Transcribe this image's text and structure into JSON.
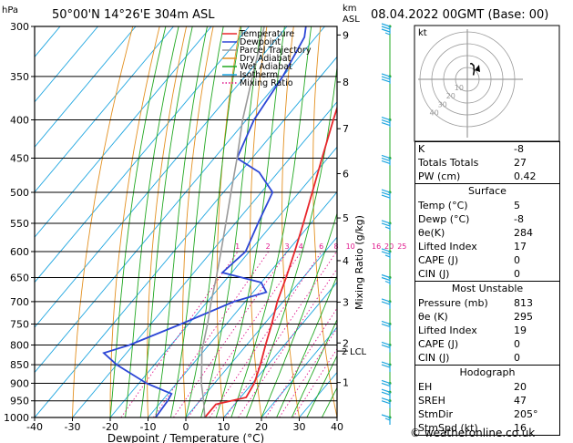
{
  "header": {
    "pressure_unit": "hPa",
    "location": "50°00'N  14°26'E  304m  ASL",
    "alt_unit_line1": "km",
    "alt_unit_line2": "ASL",
    "datetime": "08.04.2022  00GMT  (Base: 00)"
  },
  "chart_data": {
    "type": "skew-t",
    "xlabel": "Dewpoint / Temperature (°C)",
    "ylabel": "hPa",
    "mixing_ratio_axis_label": "Mixing Ratio (g/kg)",
    "xlim": [
      -40,
      40
    ],
    "ylim": [
      1000,
      300
    ],
    "x_ticks": [
      "-40",
      "-30",
      "-20",
      "-10",
      "0",
      "10",
      "20",
      "30",
      "40"
    ],
    "pressure_levels": [
      300,
      350,
      400,
      450,
      500,
      550,
      600,
      650,
      700,
      750,
      800,
      850,
      900,
      950,
      1000
    ],
    "km_ticks": [
      {
        "label": "9",
        "p": 308
      },
      {
        "label": "8",
        "p": 356
      },
      {
        "label": "7",
        "p": 411
      },
      {
        "label": "6",
        "p": 472
      },
      {
        "label": "5",
        "p": 541
      },
      {
        "label": "4",
        "p": 617
      },
      {
        "label": "3",
        "p": 701
      },
      {
        "label": "2",
        "p": 795
      },
      {
        "label": "1",
        "p": 898
      }
    ],
    "lcl_label": "LCL",
    "lcl_pressure": 815,
    "mixing_ratio_labels": [
      "1",
      "2",
      "3",
      "4",
      "6",
      "8",
      "10",
      "16",
      "20",
      "25"
    ],
    "mixing_ratio_values": [
      1,
      2,
      3,
      4,
      6,
      8,
      10,
      16,
      20,
      25
    ],
    "legend": [
      "Temperature",
      "Dewpoint",
      "Parcel Trajectory",
      "Dry Adiabat",
      "Wet Adiabat",
      "Isotherm",
      "Mixing Ratio"
    ],
    "colors": {
      "temperature": "#e8262b",
      "dewpoint": "#2c46d6",
      "parcel": "#9a9a9a",
      "dry_adiabat": "#e39020",
      "wet_adiabat": "#21a821",
      "isotherm": "#1fa6e0",
      "mixing_ratio": "#e0168c"
    },
    "series": [
      {
        "name": "Temperature",
        "points": [
          [
            1000,
            5.0
          ],
          [
            960,
            5.0
          ],
          [
            940,
            11.5
          ],
          [
            900,
            10.5
          ],
          [
            850,
            8.0
          ],
          [
            800,
            5.0
          ],
          [
            750,
            2.0
          ],
          [
            700,
            -1.5
          ],
          [
            650,
            -4.5
          ],
          [
            600,
            -8.0
          ],
          [
            550,
            -12.0
          ],
          [
            500,
            -16.5
          ],
          [
            450,
            -21.5
          ],
          [
            400,
            -27.0
          ],
          [
            350,
            -33.0
          ],
          [
            300,
            -40.0
          ]
        ]
      },
      {
        "name": "Dewpoint",
        "points": [
          [
            1000,
            -8.0
          ],
          [
            950,
            -8.5
          ],
          [
            930,
            -9.0
          ],
          [
            900,
            -18.0
          ],
          [
            850,
            -30.0
          ],
          [
            820,
            -36.0
          ],
          [
            800,
            -31.0
          ],
          [
            750,
            -22.0
          ],
          [
            700,
            -13.0
          ],
          [
            680,
            -6.5
          ],
          [
            660,
            -10.0
          ],
          [
            640,
            -22.5
          ],
          [
            600,
            -21.0
          ],
          [
            550,
            -24.0
          ],
          [
            500,
            -27.0
          ],
          [
            470,
            -35.0
          ],
          [
            450,
            -44.0
          ],
          [
            400,
            -48.0
          ],
          [
            350,
            -50.0
          ],
          [
            310,
            -53.0
          ],
          [
            300,
            -55.0
          ]
        ]
      },
      {
        "name": "Parcel Trajectory",
        "points": [
          [
            1000,
            5.0
          ],
          [
            950,
            1.0
          ],
          [
            900,
            -3.5
          ],
          [
            850,
            -7.5
          ],
          [
            815,
            -10.5
          ],
          [
            800,
            -11.5
          ],
          [
            750,
            -15.0
          ],
          [
            700,
            -19.0
          ],
          [
            650,
            -23.0
          ],
          [
            600,
            -27.5
          ],
          [
            550,
            -32.5
          ],
          [
            500,
            -38.0
          ],
          [
            450,
            -44.0
          ],
          [
            400,
            -51.0
          ],
          [
            350,
            -58.0
          ],
          [
            300,
            -66.0
          ]
        ]
      }
    ]
  },
  "hodograph": {
    "unit": "kt",
    "ring_labels": [
      "10",
      "20",
      "30",
      "40"
    ],
    "wind_trace": [
      [
        205,
        16
      ],
      [
        215,
        18
      ],
      [
        230,
        20
      ],
      [
        245,
        18
      ],
      [
        255,
        15
      ]
    ]
  },
  "wind_barbs": [
    {
      "p": 1000,
      "dir": 205,
      "spd": 15
    },
    {
      "p": 950,
      "dir": 215,
      "spd": 18
    },
    {
      "p": 925,
      "dir": 225,
      "spd": 20
    },
    {
      "p": 900,
      "dir": 230,
      "spd": 20
    },
    {
      "p": 850,
      "dir": 240,
      "spd": 20
    },
    {
      "p": 800,
      "dir": 250,
      "spd": 20
    },
    {
      "p": 750,
      "dir": 255,
      "spd": 20
    },
    {
      "p": 700,
      "dir": 260,
      "spd": 20
    },
    {
      "p": 650,
      "dir": 265,
      "spd": 25
    },
    {
      "p": 600,
      "dir": 265,
      "spd": 25
    },
    {
      "p": 550,
      "dir": 270,
      "spd": 25
    },
    {
      "p": 500,
      "dir": 270,
      "spd": 30
    },
    {
      "p": 450,
      "dir": 275,
      "spd": 30
    },
    {
      "p": 400,
      "dir": 275,
      "spd": 30
    },
    {
      "p": 350,
      "dir": 280,
      "spd": 30
    },
    {
      "p": 300,
      "dir": 280,
      "spd": 35
    }
  ],
  "indices": {
    "top": [
      {
        "label": "K",
        "value": "-8"
      },
      {
        "label": "Totals Totals",
        "value": "27"
      },
      {
        "label": "PW (cm)",
        "value": "0.42"
      }
    ],
    "surface_title": "Surface",
    "surface": [
      {
        "label": "Temp (°C)",
        "value": "5"
      },
      {
        "label": "Dewp (°C)",
        "value": "-8"
      },
      {
        "label": "θe(K)",
        "value": "284"
      },
      {
        "label": "Lifted Index",
        "value": "17"
      },
      {
        "label": "CAPE (J)",
        "value": "0"
      },
      {
        "label": "CIN (J)",
        "value": "0"
      }
    ],
    "unstable_title": "Most Unstable",
    "unstable": [
      {
        "label": "Pressure (mb)",
        "value": "813"
      },
      {
        "label": "θe (K)",
        "value": "295"
      },
      {
        "label": "Lifted Index",
        "value": "19"
      },
      {
        "label": "CAPE (J)",
        "value": "0"
      },
      {
        "label": "CIN (J)",
        "value": "0"
      }
    ],
    "hodograph_title": "Hodograph",
    "hodograph": [
      {
        "label": "EH",
        "value": "20"
      },
      {
        "label": "SREH",
        "value": "47"
      },
      {
        "label": "StmDir",
        "value": "205°"
      },
      {
        "label": "StmSpd (kt)",
        "value": "16"
      }
    ]
  },
  "footer": {
    "copyright_symbol": "©",
    "site": "weatheronline.co.uk"
  }
}
